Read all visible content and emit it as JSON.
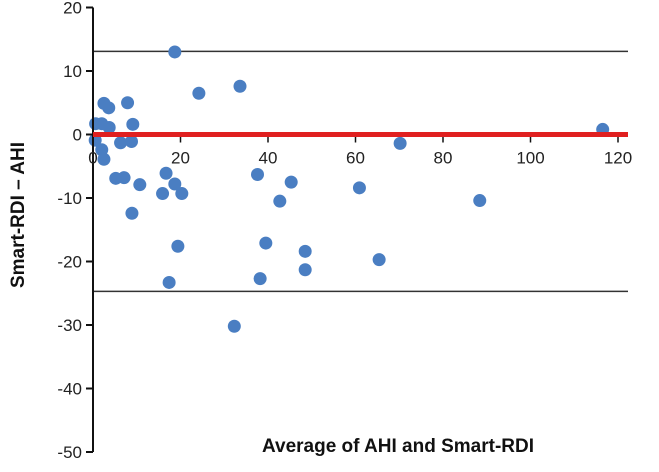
{
  "chart_data": {
    "type": "scatter",
    "title": "",
    "xlabel": "Average of AHI and Smart-RDI",
    "ylabel": "Smart-RDI – AHI",
    "xlim": [
      0,
      125
    ],
    "ylim": [
      -50,
      20
    ],
    "xticks": [
      "0",
      "20",
      "40",
      "60",
      "80",
      "100",
      "120"
    ],
    "yticks": [
      "20",
      "10",
      "0",
      "-10",
      "-20",
      "-30",
      "-40",
      "-50"
    ],
    "grid": false,
    "legend": "none",
    "point_color": "#4a7ec2",
    "reference_line": {
      "y": 0,
      "color": "#e02020"
    },
    "limits_of_agreement": [
      13.1,
      -24.7
    ],
    "limit_line_color": "#333333",
    "points": [
      {
        "x": 18.7,
        "y": 13.0
      },
      {
        "x": 24.2,
        "y": 6.5
      },
      {
        "x": 33.6,
        "y": 7.6
      },
      {
        "x": 2.5,
        "y": 4.9
      },
      {
        "x": 3.6,
        "y": 4.2
      },
      {
        "x": 7.9,
        "y": 5.0
      },
      {
        "x": 0.6,
        "y": 1.7
      },
      {
        "x": 2.0,
        "y": 1.7
      },
      {
        "x": 3.7,
        "y": 1.1
      },
      {
        "x": 9.1,
        "y": 1.6
      },
      {
        "x": 0.5,
        "y": -0.9
      },
      {
        "x": 6.3,
        "y": -1.3
      },
      {
        "x": 8.8,
        "y": -1.1
      },
      {
        "x": 2.0,
        "y": -2.4
      },
      {
        "x": 2.5,
        "y": -3.9
      },
      {
        "x": 5.2,
        "y": -6.9
      },
      {
        "x": 7.1,
        "y": -6.8
      },
      {
        "x": 10.7,
        "y": -7.9
      },
      {
        "x": 16.7,
        "y": -6.1
      },
      {
        "x": 15.9,
        "y": -9.3
      },
      {
        "x": 18.7,
        "y": -7.8
      },
      {
        "x": 20.3,
        "y": -9.3
      },
      {
        "x": 8.9,
        "y": -12.4
      },
      {
        "x": 37.6,
        "y": -6.3
      },
      {
        "x": 45.3,
        "y": -7.5
      },
      {
        "x": 42.7,
        "y": -10.5
      },
      {
        "x": 60.9,
        "y": -8.4
      },
      {
        "x": 19.4,
        "y": -17.6
      },
      {
        "x": 39.5,
        "y": -17.1
      },
      {
        "x": 48.5,
        "y": -18.4
      },
      {
        "x": 48.5,
        "y": -21.3
      },
      {
        "x": 65.4,
        "y": -19.7
      },
      {
        "x": 17.4,
        "y": -23.3
      },
      {
        "x": 38.2,
        "y": -22.7
      },
      {
        "x": 32.3,
        "y": -30.2
      },
      {
        "x": 70.2,
        "y": -1.4
      },
      {
        "x": 88.4,
        "y": -10.4
      },
      {
        "x": 116.5,
        "y": 0.8
      }
    ]
  }
}
